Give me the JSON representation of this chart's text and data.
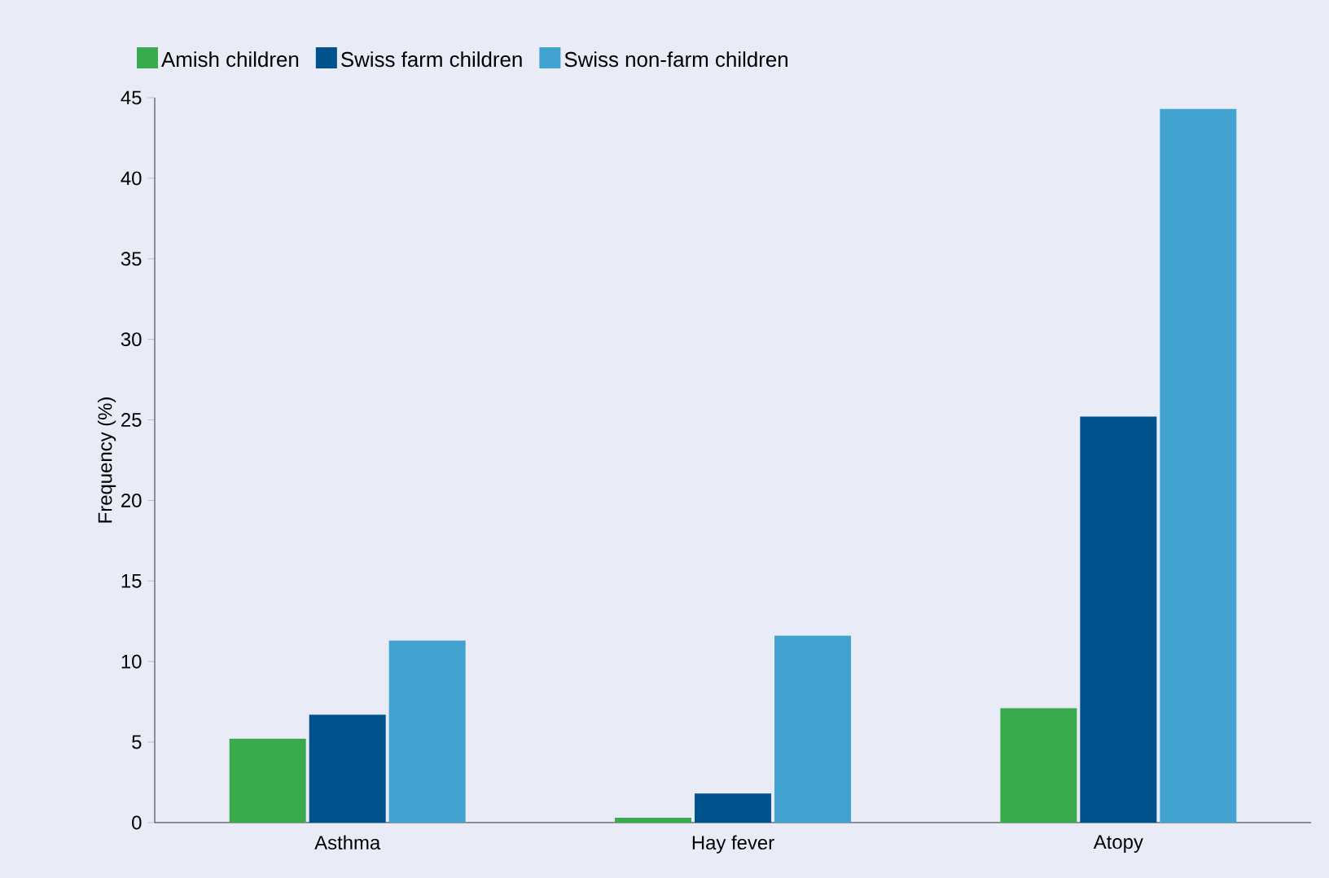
{
  "chart_data": {
    "type": "bar",
    "ylabel": "Frequency (%)",
    "categories": [
      "Asthma",
      "Hay fever",
      "Atopy"
    ],
    "series": [
      {
        "name": "Amish children",
        "color": "#3aaa4f",
        "values": [
          5.2,
          0.3,
          7.1
        ]
      },
      {
        "name": "Swiss farm children",
        "color": "#00528c",
        "values": [
          6.7,
          1.8,
          25.2
        ]
      },
      {
        "name": "Swiss non-farm children",
        "color": "#43a3d0",
        "values": [
          11.3,
          11.6,
          44.3
        ]
      }
    ],
    "ylim": [
      0,
      45
    ],
    "yticks": [
      0,
      5,
      10,
      15,
      20,
      25,
      30,
      35,
      40,
      45
    ],
    "grid": false,
    "legend": "top left"
  }
}
